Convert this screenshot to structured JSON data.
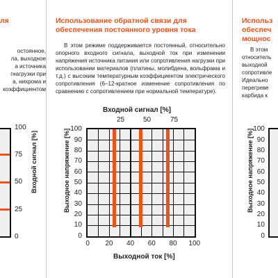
{
  "left_panel": {
    "title_fragment": "ля",
    "text_lines": [
      "остоянное,",
      "ла, выходное",
      "а источника",
      "гнагрузки при",
      "а, нихрома и",
      "коэффициентом"
    ],
    "right_axis_label": "Входной сигнал [%]",
    "right_ticks": [
      "100",
      "75",
      "50",
      "25",
      "0"
    ]
  },
  "center_panel": {
    "title": "Использование обратной связи для обеспечения постоянного уровня тока",
    "body": "В этом режиме поддерживается постоянный, относительно опорного входного сигнала, выходной ток при изменении напряжения источника питания или сопротивления нагрузки при использовании материалов (платины, молибдена, вольфрама и т.д.) с высоким температурным коэффициентом электрического сопротивления (6–12-кратное изменение сопротивления по сравнению с сопротивлением при нормальной температуре).",
    "top_axis_label": "Входной сигнал [%]",
    "top_ticks": [
      "25",
      "50",
      "75"
    ],
    "left_axis_label": "Выходное напряжение [%]",
    "left_ticks": [
      "100",
      "90",
      "80",
      "70",
      "60",
      "50",
      "40",
      "30",
      "20",
      "10",
      "0"
    ],
    "bottom_axis_label": "Выходной ток [%]",
    "bottom_ticks": [
      "0",
      "20",
      "40",
      "60",
      "80",
      "100"
    ],
    "current_levels": [
      25,
      50,
      75
    ],
    "bar_voltage_range": [
      8,
      100
    ]
  },
  "right_panel": {
    "title_lines": [
      "Использ",
      "обеспеч",
      "мощнос"
    ],
    "text_lines": [
      "В этом",
      "относитель",
      "выходной",
      "сопротивле",
      "Идеально",
      "перегреве",
      "карбида к"
    ],
    "left_axis_label": "Выходное напряжение [%]",
    "left_ticks": [
      "100",
      "90",
      "80",
      "70",
      "60",
      "50",
      "40",
      "30",
      "20",
      "10",
      "0"
    ]
  },
  "colors": {
    "accent": "#e8541c",
    "grid_bg": "#f0f0f0",
    "frame": "#111111",
    "divider": "#c8c8c8"
  }
}
